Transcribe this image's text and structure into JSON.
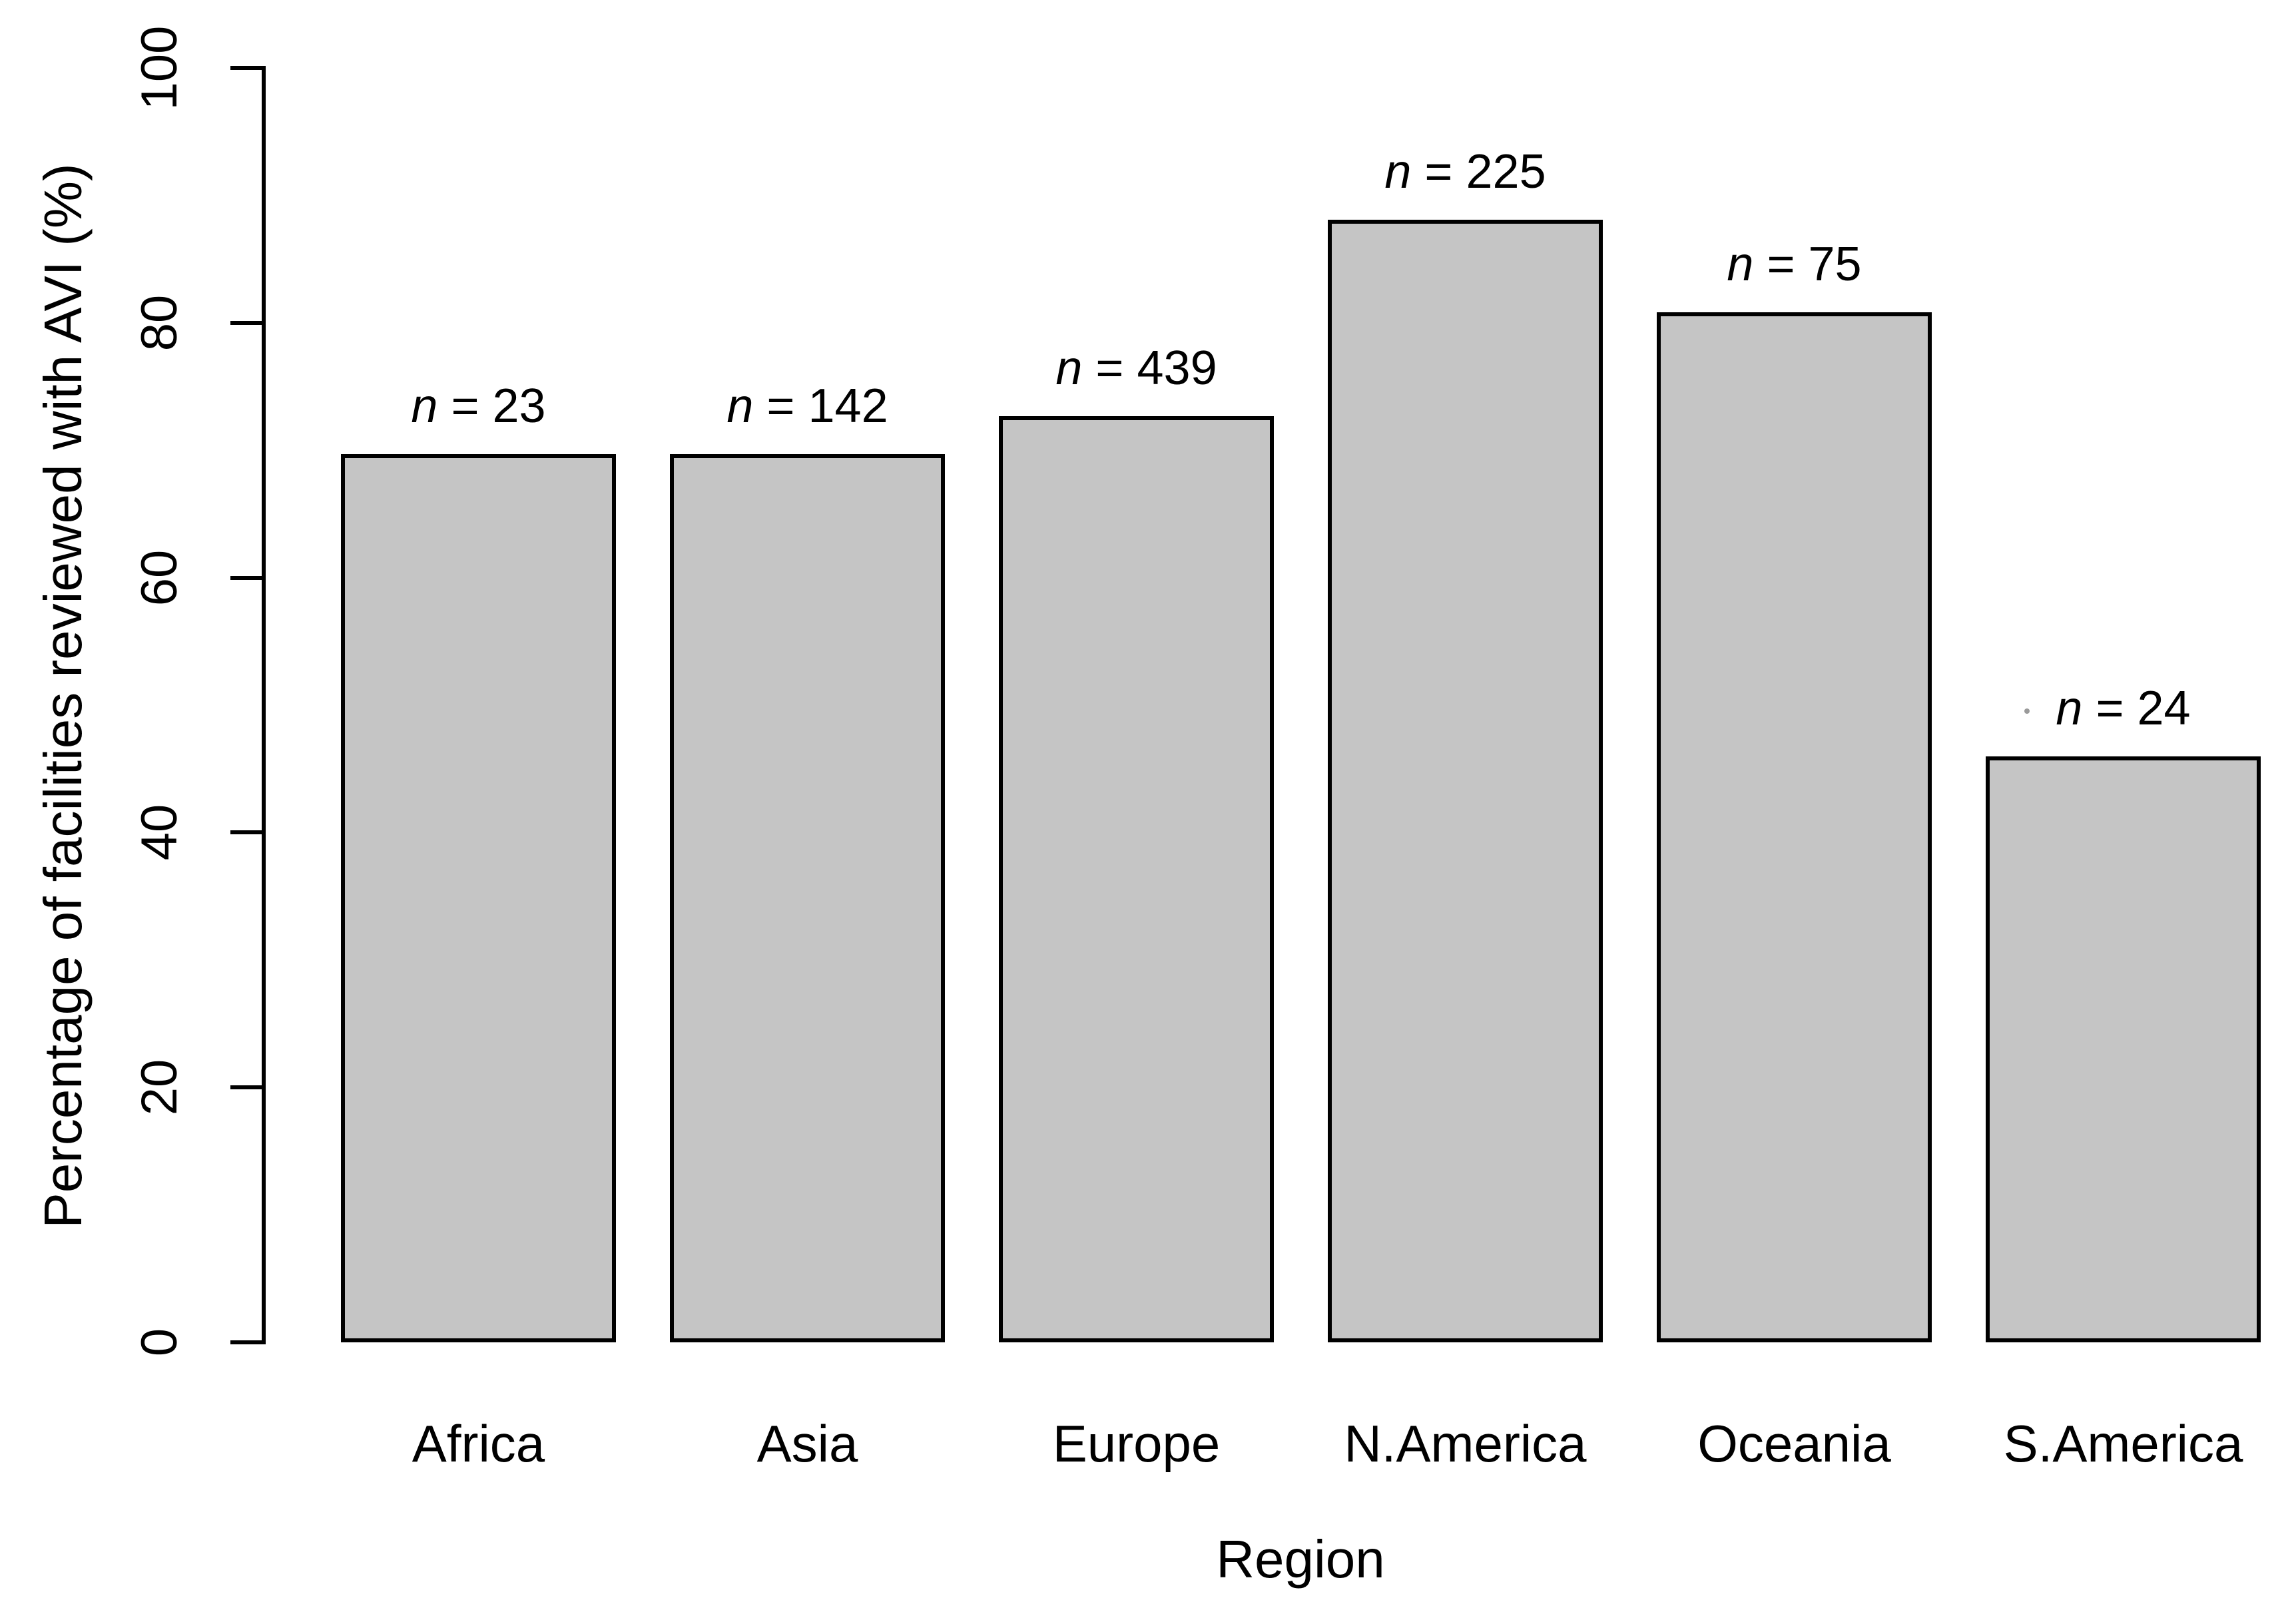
{
  "figure": {
    "y_axis_title": "Percentage of facilities reviewed with AVI (%)",
    "x_axis_title": "Region",
    "n_symbol": "n",
    "equals_sign": "="
  },
  "chart_data": {
    "type": "bar",
    "title": "",
    "xlabel": "Region",
    "ylabel": "Percentage of facilities reviewed with AVI (%)",
    "categories": [
      "Africa",
      "Asia",
      "Europe",
      "N.America",
      "Oceania",
      "S.America"
    ],
    "series": [
      {
        "name": "Percentage of facilities reviewed with AVI (%)",
        "values": [
          69.7,
          69.7,
          72.7,
          88.1,
          80.8,
          46.0
        ]
      },
      {
        "name": "n (number of facilities)",
        "values": [
          23,
          142,
          439,
          225,
          75,
          24
        ]
      }
    ],
    "bar_top_labels": [
      "n = 23",
      "n = 142",
      "n = 439",
      "n = 225",
      "n = 75",
      "n = 24"
    ],
    "y_ticks": [
      0,
      20,
      40,
      60,
      80,
      100
    ],
    "ylim": [
      0,
      100
    ],
    "grid": false,
    "legend_position": "none",
    "bar_fill_color": "#c5c5c5",
    "bar_border_color": "#000000",
    "text_color": "#000000",
    "background_color": "#ffffff"
  }
}
